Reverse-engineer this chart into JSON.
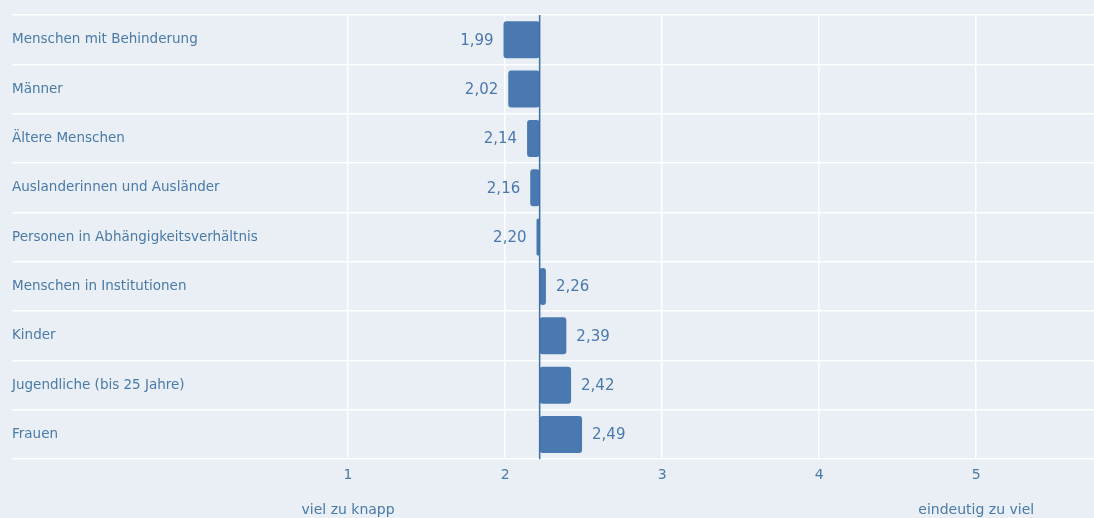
{
  "chart_data": {
    "type": "bar",
    "orientation": "horizontal",
    "categories": [
      "Menschen mit Behinderung",
      "Männer",
      "Ältere Menschen",
      "Auslanderinnen und Ausländer",
      "Personen in Abhängigkeitsverhältnis",
      "Menschen in Institutionen",
      "Kinder",
      "Jugendliche (bis 25 Jahre)",
      "Frauen"
    ],
    "base": [
      2.22,
      2.22,
      2.22,
      2.22,
      2.22,
      2.22,
      2.22,
      2.22,
      2.22
    ],
    "values": [
      -0.23,
      -0.2,
      -0.08,
      -0.06,
      -0.02,
      0.04,
      0.17,
      0.2,
      0.27
    ],
    "value_labels": [
      "1,99",
      "2,02",
      "2,14",
      "2,16",
      "2,20",
      "2,26",
      "2,39",
      "2,42",
      "2,49"
    ],
    "color": "#4a78b0",
    "ref_lines": [
      {
        "axis": "x",
        "value": 2.22,
        "color": "#3d6fa8"
      }
    ],
    "xlim": [
      -1.14,
      5.75
    ],
    "xticks": [
      1,
      2,
      3,
      4,
      5
    ],
    "annotations": [
      "viel zu knapp",
      "eindeutig zu viel"
    ],
    "grid": true,
    "legend": false
  }
}
